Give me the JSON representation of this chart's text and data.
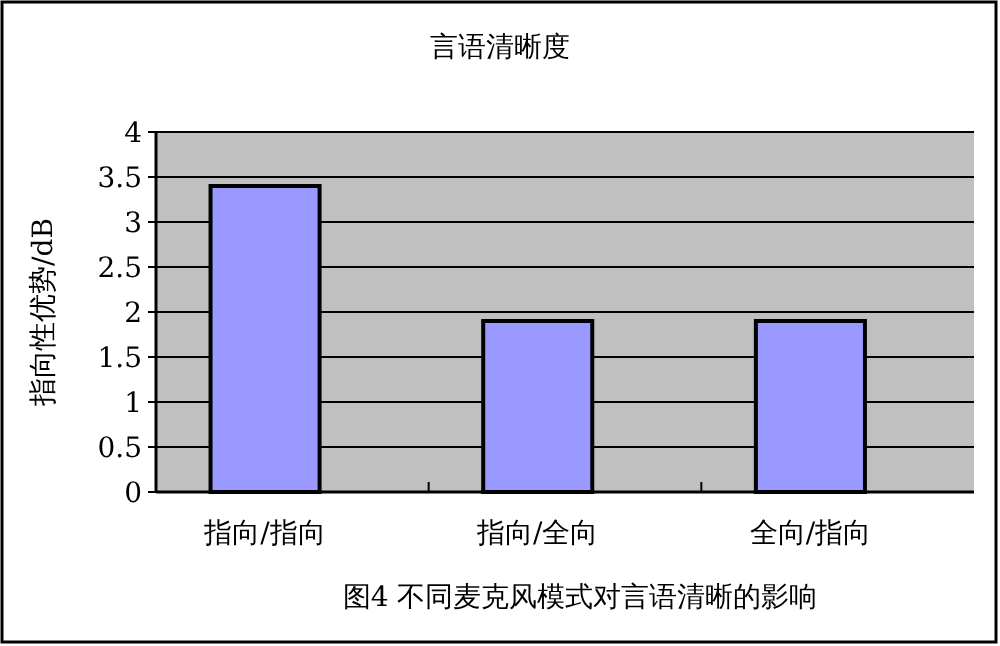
{
  "chart_data": {
    "type": "bar",
    "title": "言语清晰度",
    "ylabel": "指向性优势/dB",
    "categories": [
      "指向/指向",
      "指向/全向",
      "全向/指向"
    ],
    "values": [
      3.4,
      1.9,
      1.9
    ],
    "color": "#9999ff",
    "ylim": [
      0,
      4
    ],
    "yticks": [
      0,
      0.5,
      1,
      1.5,
      2,
      2.5,
      3,
      3.5,
      4
    ],
    "grid": "y",
    "annotations": [
      "图4 不同麦克风模式对言语清晰的影响"
    ]
  }
}
